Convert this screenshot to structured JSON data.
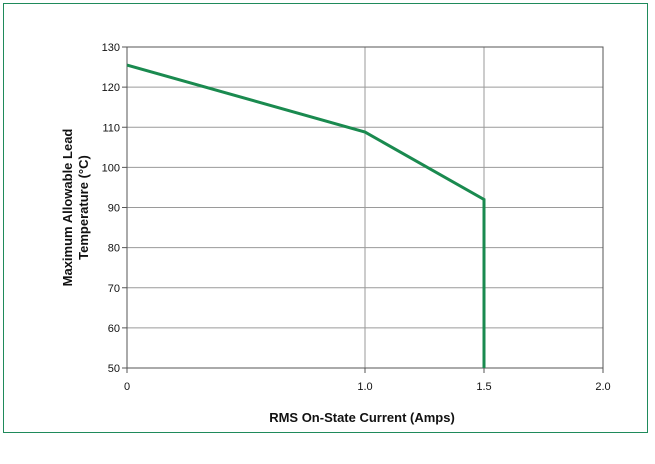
{
  "chart_data": {
    "type": "line",
    "title": "",
    "xlabel": "RMS On-State Current (Amps)",
    "ylabel_lines": [
      "Maximum Allowable Lead",
      "Temperature (°C)"
    ],
    "xlim": [
      0,
      2.0
    ],
    "ylim": [
      50,
      130
    ],
    "x_ticks": [
      {
        "value": 0,
        "label": "0"
      },
      {
        "value": 1.0,
        "label": "1.0"
      },
      {
        "value": 1.5,
        "label": "1.5"
      },
      {
        "value": 2.0,
        "label": "2.0"
      }
    ],
    "y_ticks": [
      {
        "value": 50,
        "label": "50"
      },
      {
        "value": 60,
        "label": "60"
      },
      {
        "value": 70,
        "label": "70"
      },
      {
        "value": 80,
        "label": "80"
      },
      {
        "value": 90,
        "label": "90"
      },
      {
        "value": 100,
        "label": "100"
      },
      {
        "value": 110,
        "label": "110"
      },
      {
        "value": 120,
        "label": "120"
      },
      {
        "value": 130,
        "label": "130"
      }
    ],
    "grid": true,
    "series": [
      {
        "color": "#1a8a4f",
        "points": [
          {
            "x": 0,
            "y": 125.5
          },
          {
            "x": 1.0,
            "y": 108.8
          },
          {
            "x": 1.5,
            "y": 92
          },
          {
            "x": 1.5,
            "y": 50
          }
        ]
      }
    ],
    "colors": {
      "line": "#1a8a4f",
      "frame": "#1f8a5b",
      "grid": "#9a9a9a",
      "axis": "#555555"
    }
  }
}
